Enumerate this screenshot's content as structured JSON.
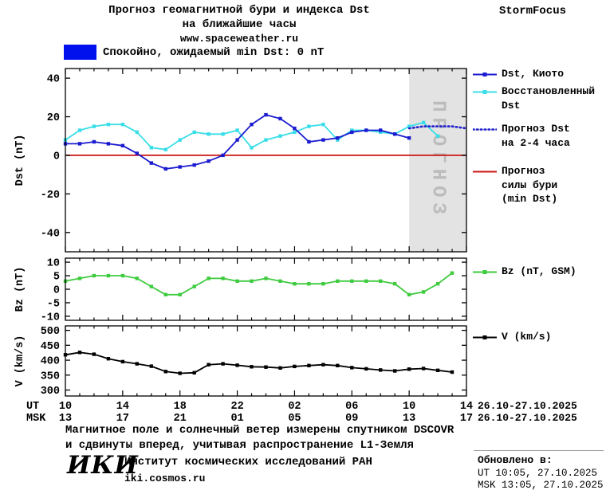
{
  "header": {
    "title_line1": "Прогноз геомагнитной бури и индекса Dst",
    "title_line2": "на ближайшие часы",
    "url": "www.spaceweather.ru",
    "brand": "StormFocus"
  },
  "status_bar": {
    "label": "Спокойно, ожидаемый min Dst: 0 nT",
    "box_color": "#0011ee"
  },
  "colors": {
    "dst_kyoto": "#1b1bd0",
    "dst_recon": "#3adee8",
    "dst_forecast": "#2222cc",
    "storm_level": "#cc1414",
    "bz": "#3ecb3e",
    "v": "#000000",
    "frame": "#000000",
    "forecast_region_fill": "#e3e3e3",
    "forecast_region_text": "#bcbcbc"
  },
  "chart_data": [
    {
      "type": "line",
      "panel": "dst",
      "ylabel": "Dst (nT)",
      "ylim": [
        -50,
        45
      ],
      "yticks": [
        -40,
        -20,
        0,
        20,
        40
      ],
      "xlim": [
        0,
        28
      ],
      "legend_position": "right",
      "grid": false,
      "series": [
        {
          "id": "storm-level",
          "name": "Прогноз силы бури (min Dst)",
          "color_key": "storm_level",
          "style": "solid",
          "marker": false,
          "x": [
            0,
            28
          ],
          "values": [
            0,
            0
          ]
        },
        {
          "id": "dst-recon",
          "name": "Восстановленный Dst",
          "color_key": "dst_recon",
          "style": "solid",
          "marker": true,
          "x": [
            0,
            1,
            2,
            3,
            4,
            5,
            6,
            7,
            8,
            9,
            10,
            11,
            12,
            13,
            14,
            15,
            16,
            17,
            18,
            19,
            20,
            21,
            22,
            23,
            24,
            25,
            26
          ],
          "values": [
            8,
            13,
            15,
            16,
            16,
            12,
            4,
            3,
            8,
            12,
            11,
            11,
            13,
            4,
            8,
            10,
            12,
            15,
            16,
            8,
            13,
            13,
            12,
            11,
            15,
            17,
            10
          ]
        },
        {
          "id": "dst-kyoto",
          "name": "Dst, Киото",
          "color_key": "dst_kyoto",
          "style": "solid",
          "marker": true,
          "x": [
            0,
            1,
            2,
            3,
            4,
            5,
            6,
            7,
            8,
            9,
            10,
            11,
            12,
            13,
            14,
            15,
            16,
            17,
            18,
            19,
            20,
            21,
            22,
            23,
            24
          ],
          "values": [
            6,
            6,
            7,
            6,
            5,
            1,
            -4,
            -7,
            -6,
            -5,
            -3,
            0,
            8,
            16,
            21,
            19,
            14,
            7,
            8,
            9,
            12,
            13,
            13,
            11,
            9
          ]
        },
        {
          "id": "dst-forecast",
          "name": "Прогноз Dst на 2-4 часа",
          "color_key": "dst_forecast",
          "style": "dotted",
          "marker": false,
          "x": [
            24,
            25,
            26,
            27,
            28
          ],
          "values": [
            14,
            15,
            15,
            15,
            14
          ]
        }
      ],
      "forecast_region": {
        "x_start": 24,
        "x_end": 28,
        "label": "ПРОГНОЗ"
      }
    },
    {
      "type": "line",
      "panel": "bz",
      "ylabel": "Bz (nT)",
      "ylim": [
        -11.5,
        11.5
      ],
      "yticks": [
        -10,
        -5,
        0,
        5,
        10
      ],
      "xlim": [
        0,
        28
      ],
      "grid": false,
      "series": [
        {
          "id": "bz",
          "name": "Bz (nT, GSM)",
          "color_key": "bz",
          "style": "solid",
          "marker": true,
          "x": [
            0,
            1,
            2,
            3,
            4,
            5,
            6,
            7,
            8,
            9,
            10,
            11,
            12,
            13,
            14,
            15,
            16,
            17,
            18,
            19,
            20,
            21,
            22,
            23,
            24,
            25,
            26,
            27
          ],
          "values": [
            3,
            4,
            5,
            5,
            5,
            4,
            1,
            -2,
            -2,
            1,
            4,
            4,
            3,
            3,
            4,
            3,
            2,
            2,
            2,
            3,
            3,
            3,
            3,
            2,
            -2,
            -1,
            2,
            6
          ]
        }
      ]
    },
    {
      "type": "line",
      "panel": "v",
      "ylabel": "V (km/s)",
      "ylim": [
        280,
        515
      ],
      "yticks": [
        300,
        350,
        400,
        450,
        500
      ],
      "xlim": [
        0,
        28
      ],
      "grid": false,
      "series": [
        {
          "id": "v",
          "name": "V (km/s)",
          "color_key": "v",
          "style": "solid",
          "marker": true,
          "x": [
            0,
            1,
            2,
            3,
            4,
            5,
            6,
            7,
            8,
            9,
            10,
            11,
            12,
            13,
            14,
            15,
            16,
            17,
            18,
            19,
            20,
            21,
            22,
            23,
            24,
            25,
            26,
            27
          ],
          "values": [
            418,
            426,
            420,
            405,
            395,
            388,
            380,
            362,
            356,
            358,
            385,
            388,
            383,
            378,
            377,
            374,
            379,
            382,
            385,
            382,
            375,
            371,
            367,
            364,
            370,
            372,
            366,
            360
          ]
        }
      ]
    }
  ],
  "xaxis": {
    "tick_hours": [
      0,
      4,
      8,
      12,
      16,
      20,
      24,
      28
    ],
    "ut_row_label": "UT",
    "msk_row_label": "MSK",
    "ut_labels": [
      "10",
      "14",
      "18",
      "22",
      "02",
      "06",
      "10",
      "14"
    ],
    "msk_labels": [
      "13",
      "17",
      "21",
      "01",
      "05",
      "09",
      "13",
      "17"
    ],
    "ut_date": "26.10-27.10.2025",
    "msk_date": "26.10-27.10.2025"
  },
  "legend": {
    "dst_panel": [
      {
        "label_lines": [
          "Dst, Киото"
        ],
        "color_key": "dst_kyoto",
        "style": "solid",
        "marker": true
      },
      {
        "label_lines": [
          "Восстановленный",
          "Dst"
        ],
        "color_key": "dst_recon",
        "style": "solid",
        "marker": true
      },
      {
        "label_lines": [
          "Прогноз Dst",
          "на 2-4 часа"
        ],
        "color_key": "dst_forecast",
        "style": "dotted",
        "marker": false
      },
      {
        "label_lines": [
          "Прогноз",
          "силы бури",
          "(min Dst)"
        ],
        "color_key": "storm_level",
        "style": "solid",
        "marker": false
      }
    ],
    "bz_panel": [
      {
        "label_lines": [
          "Bz (nT, GSM)"
        ],
        "color_key": "bz",
        "style": "solid",
        "marker": true
      }
    ],
    "v_panel": [
      {
        "label_lines": [
          "V (km/s)"
        ],
        "color_key": "v",
        "style": "solid",
        "marker": true
      }
    ]
  },
  "footer": {
    "note_line1": "Магнитное поле и солнечный ветер измерены спутником DSCOVR",
    "note_line2": "и сдвинуты вперед, учитывая распространение L1-Земля",
    "logo": "ИКИ",
    "institute": "Институт космических исследований РАН",
    "institute_url": "iki.cosmos.ru",
    "updated_label": "Обновлено в:",
    "updated_ut": "UT  10:05, 27.10.2025",
    "updated_msk": "MSK 13:05, 27.10.2025"
  }
}
